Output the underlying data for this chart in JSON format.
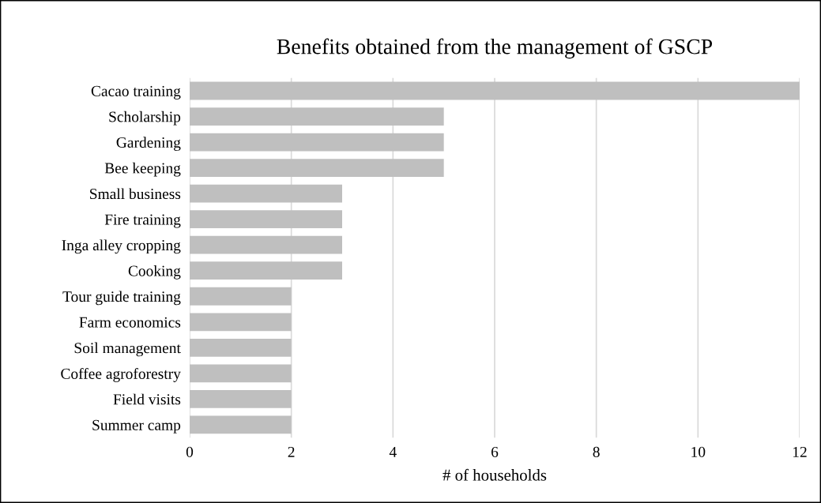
{
  "chart_data": {
    "type": "bar",
    "orientation": "horizontal",
    "title": "Benefits obtained from the management of GSCP",
    "xlabel": "# of households",
    "categories": [
      "Cacao training",
      "Scholarship",
      "Gardening",
      "Bee keeping",
      "Small business",
      "Fire training",
      "Inga alley cropping",
      "Cooking",
      "Tour guide training",
      "Farm economics",
      "Soil management",
      "Coffee agroforestry",
      "Field visits",
      "Summer camp"
    ],
    "values": [
      12,
      5,
      5,
      5,
      3,
      3,
      3,
      3,
      2,
      2,
      2,
      2,
      2,
      2
    ],
    "color": "#bfbfbf",
    "xlim": [
      0,
      12
    ],
    "xticks": [
      0,
      2,
      4,
      6,
      8,
      10,
      12
    ],
    "grid": "x",
    "legend": false
  }
}
